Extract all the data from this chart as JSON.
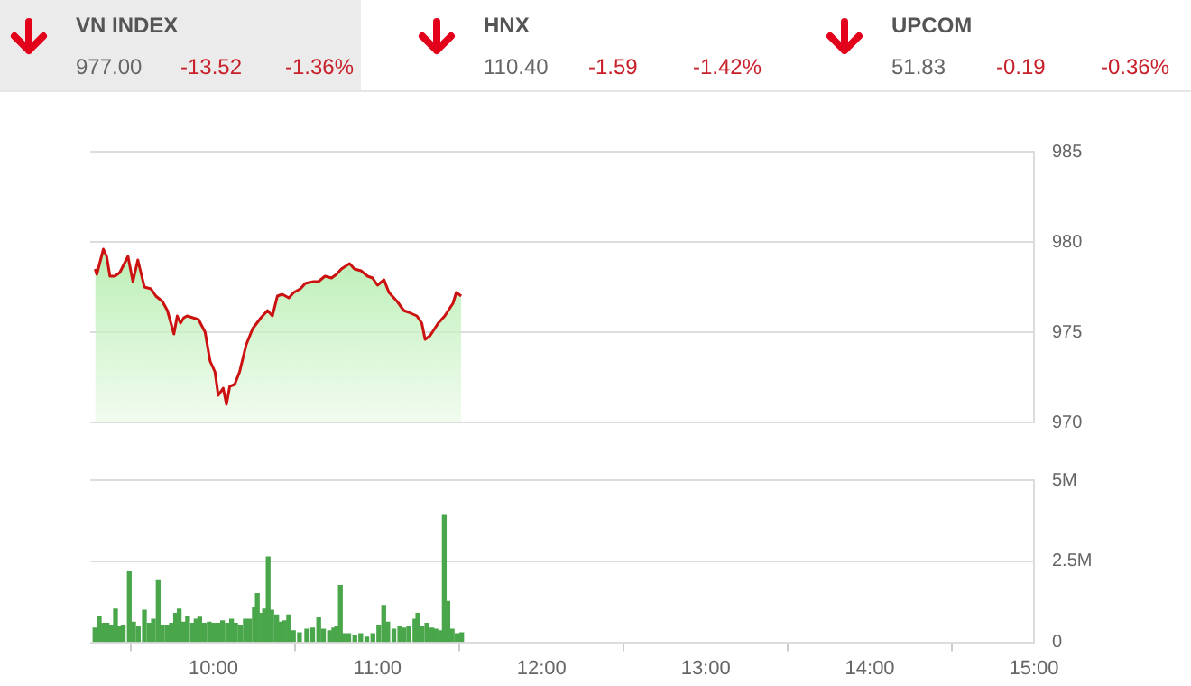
{
  "chart_data": [
    {
      "type": "other",
      "annotations": [
        "VN INDEX",
        "977.00",
        "-13.52",
        "-1.36%",
        "HNX",
        "110.40",
        "-1.59",
        "-1.42%",
        "UPCOM",
        "51.83",
        "-0.19",
        "-0.36%"
      ]
    },
    {
      "type": "area",
      "xlim": [
        9.25,
        15
      ],
      "ylim": [
        970,
        985
      ],
      "yticks": [
        970,
        975,
        980,
        985
      ],
      "grid": "y",
      "tick_labels": "y",
      "series": [
        {
          "color": "#cc1111",
          "x": [
            9.28,
            9.29,
            9.33,
            9.35,
            9.37,
            9.4,
            9.43,
            9.48,
            9.51,
            9.54,
            9.58,
            9.62,
            9.65,
            9.69,
            9.72,
            9.76,
            9.78,
            9.8,
            9.82,
            9.84,
            9.91,
            9.95,
            9.98,
            10.01,
            10.03,
            10.06,
            10.08,
            10.1,
            10.13,
            10.16,
            10.2,
            10.24,
            10.29,
            10.33,
            10.36,
            10.39,
            10.42,
            10.46,
            10.49,
            10.53,
            10.56,
            10.61,
            10.64,
            10.68,
            10.72,
            10.75,
            10.78,
            10.83,
            10.86,
            10.9,
            10.94,
            10.97,
            11.0,
            11.04,
            11.07,
            11.12,
            11.16,
            11.19,
            11.24,
            11.27,
            11.29,
            11.32,
            11.37,
            11.41,
            11.46,
            11.48,
            11.51
          ],
          "values": [
            978.5,
            978.2,
            979.6,
            979.2,
            978.1,
            978.1,
            978.3,
            979.2,
            977.8,
            979.0,
            977.5,
            977.4,
            977.0,
            976.7,
            976.2,
            974.9,
            975.9,
            975.5,
            975.8,
            975.9,
            975.7,
            975.0,
            973.4,
            972.8,
            971.5,
            971.9,
            971.0,
            972.0,
            972.1,
            972.8,
            974.3,
            975.2,
            975.8,
            976.2,
            975.9,
            977.0,
            977.1,
            976.9,
            977.2,
            977.4,
            977.7,
            977.8,
            977.8,
            978.1,
            978.0,
            978.2,
            978.5,
            978.8,
            978.5,
            978.4,
            978.1,
            978.0,
            977.6,
            977.9,
            977.2,
            976.7,
            976.2,
            976.1,
            975.9,
            975.5,
            974.6,
            974.8,
            975.5,
            975.9,
            976.6,
            977.2,
            977.0
          ]
        }
      ]
    },
    {
      "type": "bar",
      "xlim": [
        9.25,
        15
      ],
      "xticks": [
        {
          "value": 10,
          "label": "10:00"
        },
        {
          "value": 11,
          "label": "11:00"
        },
        {
          "value": 12,
          "label": "12:00"
        },
        {
          "value": 13,
          "label": "13:00"
        },
        {
          "value": 14,
          "label": "14:00"
        },
        {
          "value": 15,
          "label": "15:00"
        }
      ],
      "ylim": [
        0,
        5
      ],
      "yticks": [
        0,
        {
          "value": 2.5,
          "label": "2.5M"
        },
        {
          "value": 5,
          "label": "5M"
        }
      ],
      "grid": "y",
      "series": [
        {
          "color": "#4aa64a",
          "x": [
            9.279,
            9.305,
            9.331,
            9.353,
            9.378,
            9.404,
            9.426,
            9.451,
            9.488,
            9.514,
            9.543,
            9.58,
            9.609,
            9.635,
            9.664,
            9.69,
            9.719,
            9.745,
            9.77,
            9.792,
            9.818,
            9.843,
            9.873,
            9.895,
            9.917,
            9.946,
            9.975,
            10.001,
            10.027,
            10.056,
            10.085,
            10.111,
            10.136,
            10.166,
            10.195,
            10.221,
            10.25,
            10.268,
            10.294,
            10.312,
            10.334,
            10.356,
            10.386,
            10.411,
            10.433,
            10.459,
            10.488,
            10.525,
            10.569,
            10.605,
            10.642,
            10.671,
            10.708,
            10.734,
            10.752,
            10.774,
            10.796,
            10.825,
            10.862,
            10.898,
            10.935,
            10.972,
            11.008,
            11.038,
            11.063,
            11.1,
            11.136,
            11.162,
            11.191,
            11.228,
            11.246,
            11.272,
            11.301,
            11.331,
            11.356,
            11.382,
            11.407,
            11.429,
            11.455,
            11.484,
            11.513
          ],
          "values": [
            0.44,
            0.8,
            0.58,
            0.58,
            0.53,
            1.02,
            0.47,
            0.53,
            2.17,
            0.62,
            0.47,
            0.99,
            0.58,
            0.71,
            1.9,
            0.53,
            0.53,
            0.58,
            0.89,
            1.02,
            0.62,
            0.8,
            0.58,
            0.71,
            0.77,
            0.58,
            0.62,
            0.58,
            0.58,
            0.66,
            0.58,
            0.71,
            0.58,
            0.53,
            0.71,
            0.71,
            1.08,
            1.5,
            0.89,
            1.02,
            2.63,
            0.99,
            0.84,
            0.62,
            0.66,
            0.84,
            0.35,
            0.29,
            0.4,
            0.44,
            0.75,
            0.4,
            0.35,
            0.44,
            0.47,
            1.75,
            0.26,
            0.26,
            0.22,
            0.26,
            0.16,
            0.26,
            0.53,
            1.13,
            0.62,
            0.4,
            0.47,
            0.44,
            0.47,
            0.71,
            0.89,
            0.47,
            0.58,
            0.44,
            0.4,
            0.35,
            3.91,
            1.26,
            0.4,
            0.26,
            0.29
          ]
        }
      ]
    }
  ]
}
